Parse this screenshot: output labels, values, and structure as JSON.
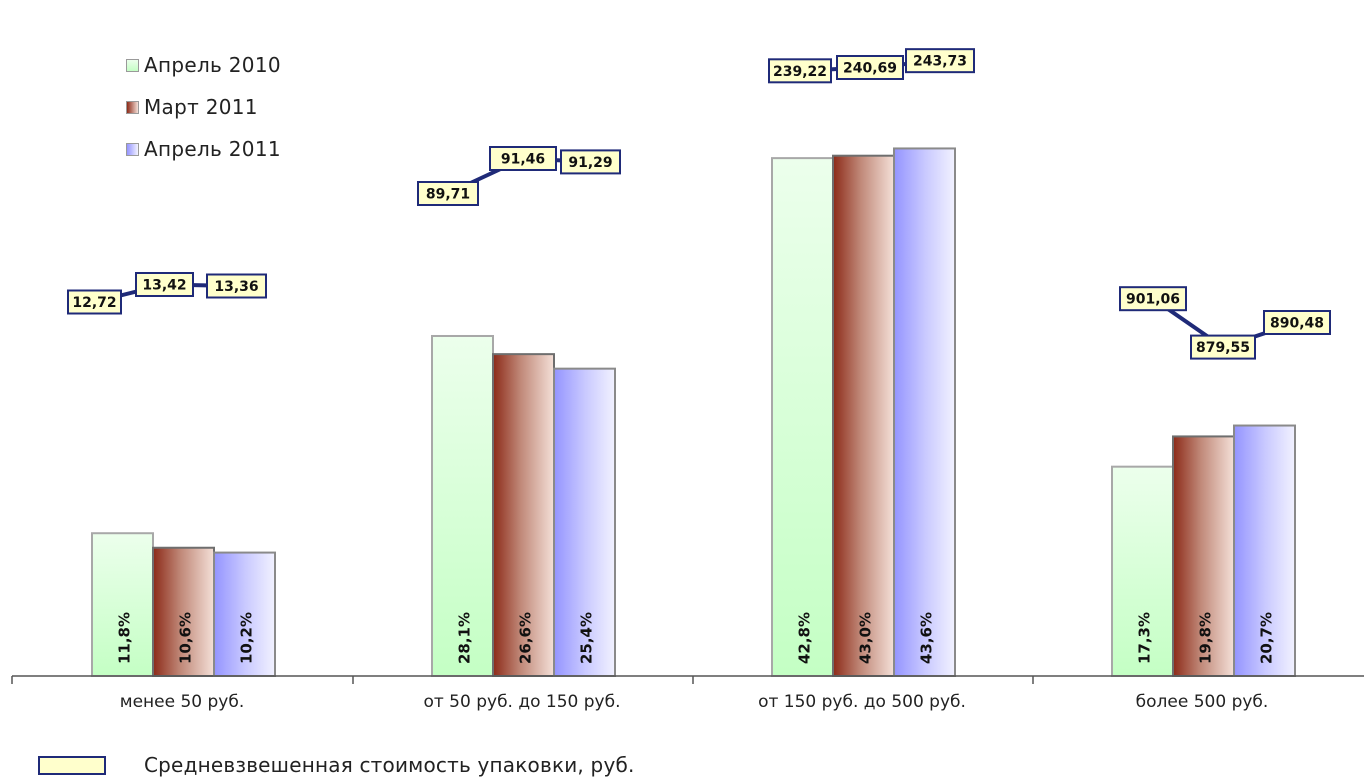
{
  "chart_data": {
    "type": "bar",
    "categories": [
      "менее 50 руб.",
      "от 50 руб. до 150 руб.",
      "от 150 руб. до 500 руб.",
      "более 500 руб."
    ],
    "series": [
      {
        "name": "Апрель 2010",
        "values": [
          11.8,
          28.1,
          42.8,
          17.3
        ],
        "labels": [
          "11,8%",
          "28,1%",
          "42,8%",
          "17,3%"
        ]
      },
      {
        "name": "Март 2011",
        "values": [
          10.6,
          26.6,
          43.0,
          19.8
        ],
        "labels": [
          "10,6%",
          "26,6%",
          "43,0%",
          "19,8%"
        ]
      },
      {
        "name": "Апрель 2011",
        "values": [
          10.2,
          25.4,
          43.6,
          20.7
        ],
        "labels": [
          "10,2%",
          "25,4%",
          "43,6%",
          "20,7%"
        ]
      }
    ],
    "price_series": {
      "name": "Средневзвешенная стоимость упаковки, руб.",
      "values": [
        [
          12.72,
          13.42,
          13.36
        ],
        [
          89.71,
          91.46,
          91.29
        ],
        [
          239.22,
          240.69,
          243.73
        ],
        [
          901.06,
          879.55,
          890.48
        ]
      ],
      "labels": [
        [
          "12,72",
          "13,42",
          "13,36"
        ],
        [
          "89,71",
          "91,46",
          "91,29"
        ],
        [
          "239,22",
          "240,69",
          "243,73"
        ],
        [
          "901,06",
          "879,55",
          "890,48"
        ]
      ]
    },
    "ylim": [
      0,
      50
    ],
    "grid": false,
    "legend_position": "top-left"
  },
  "colors": {
    "series": [
      {
        "top": "#ecffec",
        "bottom": "#c8ffc8",
        "border": "#a8a8a8"
      },
      {
        "left": "#8c2a18",
        "right": "#f0d8d0",
        "border": "#6e6e6e"
      },
      {
        "left": "#9898ff",
        "right": "#f0f0ff",
        "border": "#8a8a8a"
      }
    ],
    "price_line": "#1f2a78",
    "price_box": "#ffffcc"
  }
}
